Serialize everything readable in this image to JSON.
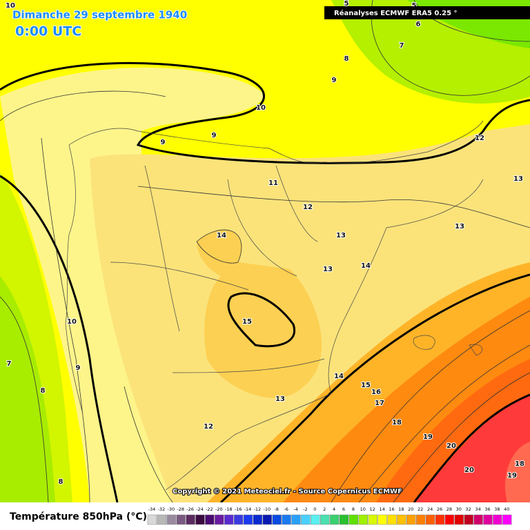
{
  "header": {
    "title": "Dimanche 29 septembre 1940",
    "time": "0:00 UTC",
    "source": "Réanalyses ECMWF ERA5 0.25 °"
  },
  "contour_labels": [
    10,
    5,
    5,
    6,
    7,
    8,
    9,
    10,
    9,
    9,
    12,
    13,
    11,
    12,
    13,
    14,
    13,
    13,
    14,
    15,
    10,
    9,
    7,
    8,
    14,
    15,
    16,
    17,
    18,
    19,
    20,
    20,
    18,
    19,
    12,
    13,
    8
  ],
  "copyright": "Copyright © 2021 Meteociel.fr - Source Copernicus ECMWF",
  "legend": {
    "title": "Température 850hPa (°C)",
    "ticks": [
      -34,
      -32,
      -30,
      -28,
      -26,
      -24,
      -22,
      -20,
      -18,
      -16,
      -14,
      -12,
      -10,
      -8,
      -6,
      -4,
      -2,
      0,
      2,
      4,
      6,
      8,
      10,
      12,
      14,
      16,
      18,
      20,
      22,
      24,
      26,
      28,
      30,
      32,
      34,
      36,
      38,
      40
    ]
  }
}
